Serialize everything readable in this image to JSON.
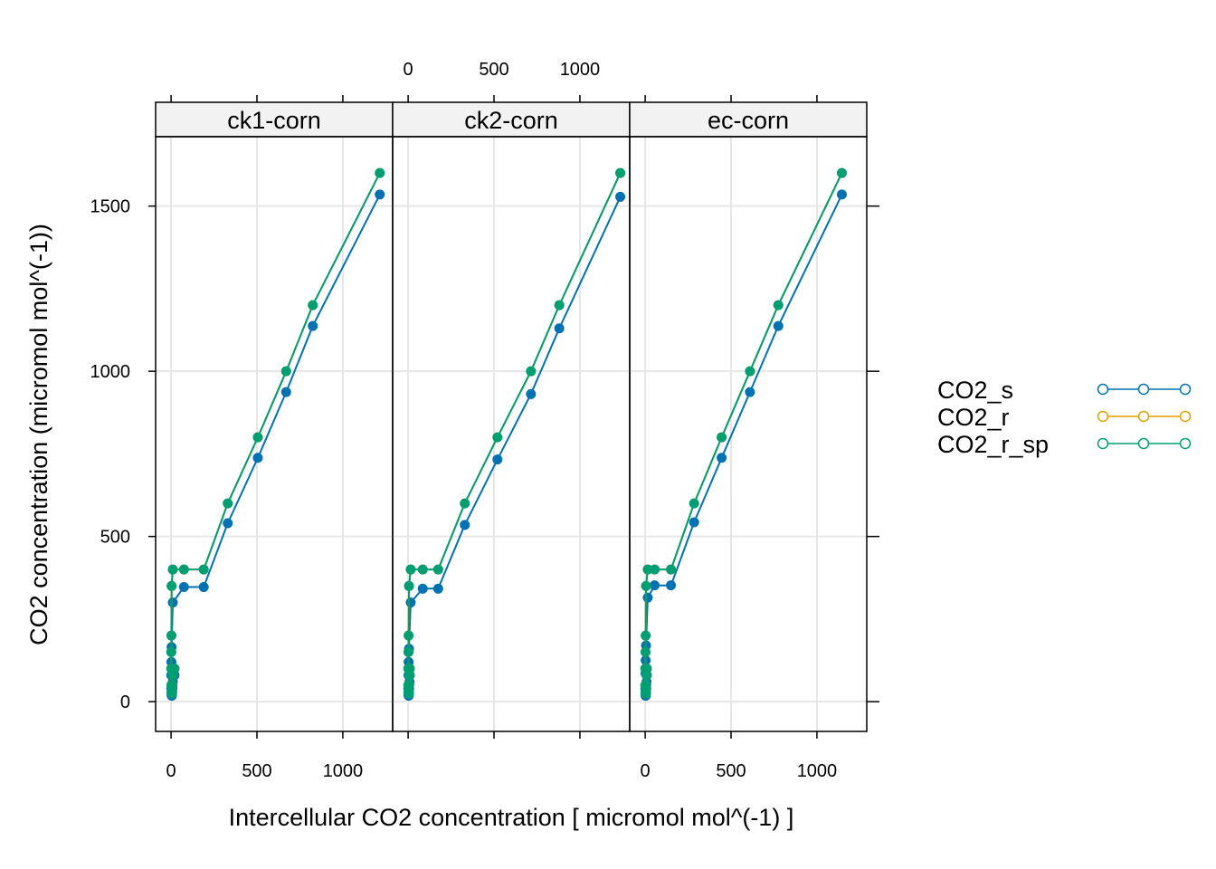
{
  "chart_data": {
    "type": "line",
    "xlabel": "Intercellular CO2 concentration [ micromol mol^(-1) ]",
    "ylabel": "CO2 concentration (micromol mol^(-1))",
    "xlim": [
      -90,
      1290
    ],
    "ylim": [
      -90,
      1710
    ],
    "x_ticks": [
      0,
      500,
      1000
    ],
    "y_ticks": [
      0,
      500,
      1000,
      1500
    ],
    "grid": true,
    "legend_position": "right",
    "markers": "filled circles",
    "colors": {
      "CO2_s": "#0072B2",
      "CO2_r": "#E69F00",
      "CO2_r_sp": "#009E73"
    },
    "legend": [
      {
        "name": "CO2_s",
        "color": "#0072B2"
      },
      {
        "name": "CO2_r",
        "color": "#E69F00"
      },
      {
        "name": "CO2_r_sp",
        "color": "#009E73"
      }
    ],
    "panels": [
      {
        "name": "ck1-corn",
        "series": [
          {
            "name": "CO2_s",
            "x": [
              1215,
              825,
              670,
              505,
              330,
              190,
              75,
              10,
              3,
              2,
              1,
              1,
              2,
              3,
              4,
              5,
              6,
              8,
              10,
              20
            ],
            "y": [
              1535,
              1137,
              937,
              738,
              540,
              347,
              347,
              300,
              165,
              120,
              80,
              40,
              25,
              20,
              18,
              20,
              25,
              40,
              60,
              80
            ]
          },
          {
            "name": "CO2_r",
            "x": [
              1215,
              825,
              670,
              505,
              330,
              190,
              75,
              10,
              3,
              2,
              1,
              1,
              2,
              3,
              4,
              5,
              6,
              8,
              10,
              20
            ],
            "y": [
              1600,
              1200,
              1000,
              800,
              600,
              400,
              400,
              400,
              350,
              200,
              150,
              100,
              50,
              30,
              25,
              25,
              30,
              50,
              80,
              100
            ]
          },
          {
            "name": "CO2_r_sp",
            "x": [
              1215,
              825,
              670,
              505,
              330,
              190,
              75,
              10,
              3,
              2,
              1,
              1,
              2,
              3,
              4,
              5,
              6,
              8,
              10,
              20
            ],
            "y": [
              1600,
              1200,
              1000,
              800,
              600,
              400,
              400,
              400,
              350,
              200,
              150,
              100,
              50,
              30,
              25,
              25,
              30,
              50,
              80,
              100
            ]
          }
        ]
      },
      {
        "name": "ck2-corn",
        "series": [
          {
            "name": "CO2_s",
            "x": [
              1235,
              880,
              715,
              520,
              330,
              175,
              85,
              15,
              5,
              3,
              2,
              1,
              1,
              2,
              3,
              4,
              5,
              6,
              8,
              10
            ],
            "y": [
              1528,
              1130,
              931,
              733,
              535,
              342,
              342,
              300,
              160,
              120,
              80,
              40,
              25,
              20,
              18,
              20,
              25,
              40,
              60,
              80
            ]
          },
          {
            "name": "CO2_r",
            "x": [
              1235,
              880,
              715,
              520,
              330,
              175,
              85,
              15,
              5,
              3,
              2,
              1,
              1,
              2,
              3,
              4,
              5,
              6,
              8,
              10
            ],
            "y": [
              1600,
              1200,
              1000,
              800,
              600,
              400,
              400,
              400,
              350,
              200,
              150,
              100,
              50,
              30,
              25,
              25,
              30,
              50,
              80,
              100
            ]
          },
          {
            "name": "CO2_r_sp",
            "x": [
              1235,
              880,
              715,
              520,
              330,
              175,
              85,
              15,
              5,
              3,
              2,
              1,
              1,
              2,
              3,
              4,
              5,
              6,
              8,
              10
            ],
            "y": [
              1600,
              1200,
              1000,
              800,
              600,
              400,
              400,
              400,
              350,
              200,
              150,
              100,
              50,
              30,
              25,
              25,
              30,
              50,
              80,
              100
            ]
          }
        ]
      },
      {
        "name": "ec-corn",
        "series": [
          {
            "name": "CO2_s",
            "x": [
              1145,
              775,
              610,
              445,
              285,
              150,
              55,
              15,
              5,
              3,
              2,
              1,
              1,
              2,
              3,
              4,
              5,
              6,
              8,
              10
            ],
            "y": [
              1535,
              1137,
              937,
              738,
              543,
              352,
              352,
              315,
              170,
              125,
              85,
              40,
              25,
              20,
              18,
              20,
              25,
              40,
              60,
              80
            ]
          },
          {
            "name": "CO2_r",
            "x": [
              1145,
              775,
              610,
              445,
              285,
              150,
              55,
              15,
              5,
              3,
              2,
              1,
              1,
              2,
              3,
              4,
              5,
              6,
              8,
              10
            ],
            "y": [
              1600,
              1200,
              1000,
              800,
              600,
              400,
              400,
              400,
              350,
              200,
              150,
              100,
              50,
              30,
              25,
              25,
              30,
              50,
              80,
              100
            ]
          },
          {
            "name": "CO2_r_sp",
            "x": [
              1145,
              775,
              610,
              445,
              285,
              150,
              55,
              15,
              5,
              3,
              2,
              1,
              1,
              2,
              3,
              4,
              5,
              6,
              8,
              10
            ],
            "y": [
              1600,
              1200,
              1000,
              800,
              600,
              400,
              400,
              400,
              350,
              200,
              150,
              100,
              50,
              30,
              25,
              25,
              30,
              50,
              80,
              100
            ]
          }
        ]
      }
    ]
  }
}
